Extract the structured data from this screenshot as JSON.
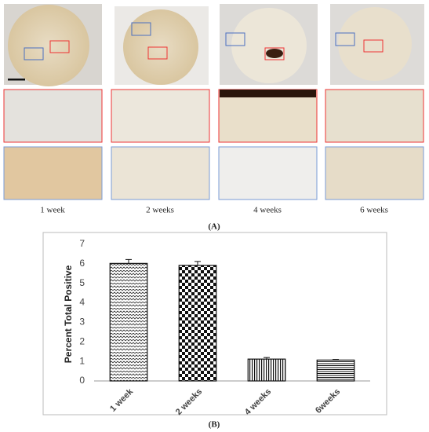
{
  "panel_a": {
    "labels": [
      "1 week",
      "2 weeks",
      "4 weeks",
      "6 weeks"
    ],
    "caption": "(A)"
  },
  "panel_b": {
    "caption": "(B)"
  },
  "chart_data": {
    "type": "bar",
    "ylabel": "Percent Total Positive",
    "categories": [
      "1 week",
      "2 weeks",
      "4 weeks",
      "6weeks"
    ],
    "values": [
      6.02,
      5.92,
      1.12,
      1.07
    ],
    "errors": [
      0.2,
      0.2,
      0.08,
      0.03
    ],
    "ylim": [
      0,
      7
    ],
    "yticks": [
      0,
      1,
      2,
      3,
      4,
      5,
      6,
      7
    ],
    "grid": false
  }
}
